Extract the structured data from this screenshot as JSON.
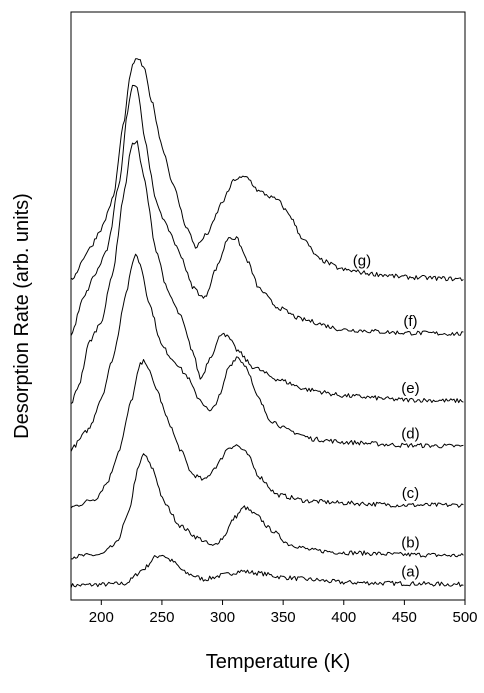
{
  "chart_data": {
    "type": "line",
    "xlabel": "Temperature (K)",
    "ylabel": "Desorption Rate (arb. units)",
    "xlim": [
      175,
      500
    ],
    "x_ticks": [
      200,
      250,
      300,
      350,
      400,
      450,
      500
    ],
    "y_ticks_shown": false,
    "grid": false,
    "legend": "none",
    "series": [
      {
        "label": "(a)",
        "label_x": 455,
        "baseline": 0.2,
        "points": [
          [
            175,
            0
          ],
          [
            200,
            0.05
          ],
          [
            220,
            0.1
          ],
          [
            235,
            0.8
          ],
          [
            245,
            1.4
          ],
          [
            250,
            1.5
          ],
          [
            258,
            1.2
          ],
          [
            270,
            0.6
          ],
          [
            285,
            0.3
          ],
          [
            300,
            0.5
          ],
          [
            315,
            0.7
          ],
          [
            330,
            0.6
          ],
          [
            350,
            0.4
          ],
          [
            370,
            0.3
          ],
          [
            400,
            0.15
          ],
          [
            450,
            0.1
          ],
          [
            500,
            0.05
          ]
        ]
      },
      {
        "label": "(b)",
        "label_x": 455,
        "baseline": 1.6,
        "points": [
          [
            175,
            0
          ],
          [
            200,
            0.1
          ],
          [
            212,
            0.6
          ],
          [
            222,
            2.0
          ],
          [
            230,
            4.2
          ],
          [
            235,
            5.0
          ],
          [
            242,
            4.3
          ],
          [
            252,
            2.6
          ],
          [
            265,
            1.5
          ],
          [
            280,
            0.9
          ],
          [
            292,
            0.5
          ],
          [
            300,
            0.9
          ],
          [
            310,
            1.9
          ],
          [
            318,
            2.4
          ],
          [
            328,
            2.0
          ],
          [
            340,
            1.3
          ],
          [
            355,
            0.6
          ],
          [
            375,
            0.3
          ],
          [
            400,
            0.2
          ],
          [
            450,
            0.1
          ],
          [
            500,
            0.05
          ]
        ]
      },
      {
        "label": "(c)",
        "label_x": 455,
        "baseline": 4.0,
        "points": [
          [
            175,
            0
          ],
          [
            195,
            0.4
          ],
          [
            205,
            1.2
          ],
          [
            215,
            2.8
          ],
          [
            225,
            5.2
          ],
          [
            232,
            6.9
          ],
          [
            236,
            7.1
          ],
          [
            245,
            5.8
          ],
          [
            255,
            4.2
          ],
          [
            265,
            2.8
          ],
          [
            275,
            1.6
          ],
          [
            285,
            1.3
          ],
          [
            295,
            2.0
          ],
          [
            305,
            2.9
          ],
          [
            312,
            3.0
          ],
          [
            320,
            2.6
          ],
          [
            330,
            1.5
          ],
          [
            345,
            0.6
          ],
          [
            370,
            0.3
          ],
          [
            400,
            0.2
          ],
          [
            450,
            0.1
          ],
          [
            500,
            0.1
          ]
        ]
      },
      {
        "label": "(d)",
        "label_x": 455,
        "baseline": 6.8,
        "points": [
          [
            175,
            0
          ],
          [
            190,
            1.0
          ],
          [
            200,
            2.5
          ],
          [
            210,
            4.5
          ],
          [
            220,
            7.5
          ],
          [
            228,
            9.5
          ],
          [
            232,
            9.0
          ],
          [
            240,
            7.0
          ],
          [
            250,
            5.0
          ],
          [
            260,
            4.3
          ],
          [
            270,
            3.6
          ],
          [
            280,
            2.5
          ],
          [
            290,
            1.8
          ],
          [
            298,
            2.6
          ],
          [
            305,
            4.0
          ],
          [
            312,
            4.5
          ],
          [
            320,
            4.0
          ],
          [
            328,
            2.6
          ],
          [
            340,
            1.4
          ],
          [
            355,
            0.9
          ],
          [
            375,
            0.5
          ],
          [
            400,
            0.35
          ],
          [
            450,
            0.2
          ],
          [
            500,
            0.15
          ]
        ]
      },
      {
        "label": "(e)",
        "label_x": 455,
        "baseline": 9.0,
        "points": [
          [
            175,
            0
          ],
          [
            182,
            1.0
          ],
          [
            190,
            3.0
          ],
          [
            200,
            4.0
          ],
          [
            210,
            6.5
          ],
          [
            218,
            10.0
          ],
          [
            225,
            12.5
          ],
          [
            229,
            12.8
          ],
          [
            235,
            11.0
          ],
          [
            245,
            7.5
          ],
          [
            255,
            5.4
          ],
          [
            265,
            4.3
          ],
          [
            275,
            2.6
          ],
          [
            282,
            1.2
          ],
          [
            290,
            2.3
          ],
          [
            300,
            3.5
          ],
          [
            305,
            3.2
          ],
          [
            312,
            2.6
          ],
          [
            325,
            1.8
          ],
          [
            345,
            1.2
          ],
          [
            370,
            0.7
          ],
          [
            400,
            0.4
          ],
          [
            450,
            0.2
          ],
          [
            500,
            0.15
          ]
        ]
      },
      {
        "label": "(f)",
        "label_x": 455,
        "baseline": 12.3,
        "points": [
          [
            175,
            0
          ],
          [
            185,
            1.8
          ],
          [
            195,
            3.0
          ],
          [
            205,
            4.2
          ],
          [
            215,
            7.5
          ],
          [
            222,
            11.0
          ],
          [
            226,
            12.3
          ],
          [
            230,
            12.0
          ],
          [
            236,
            9.5
          ],
          [
            245,
            6.5
          ],
          [
            255,
            5.2
          ],
          [
            265,
            4.0
          ],
          [
            275,
            2.4
          ],
          [
            285,
            1.8
          ],
          [
            295,
            3.3
          ],
          [
            305,
            4.8
          ],
          [
            312,
            4.7
          ],
          [
            320,
            3.7
          ],
          [
            330,
            2.3
          ],
          [
            345,
            1.4
          ],
          [
            365,
            0.8
          ],
          [
            400,
            0.3
          ],
          [
            450,
            0.15
          ],
          [
            500,
            0.1
          ]
        ]
      },
      {
        "label": "(g)",
        "label_x": 415,
        "baseline": 15.0,
        "points": [
          [
            175,
            0
          ],
          [
            190,
            1.5
          ],
          [
            200,
            2.5
          ],
          [
            210,
            4.0
          ],
          [
            218,
            7.5
          ],
          [
            225,
            10.3
          ],
          [
            230,
            10.8
          ],
          [
            235,
            10.3
          ],
          [
            242,
            8.6
          ],
          [
            250,
            6.5
          ],
          [
            260,
            4.5
          ],
          [
            270,
            2.6
          ],
          [
            278,
            1.6
          ],
          [
            288,
            2.3
          ],
          [
            300,
            3.8
          ],
          [
            310,
            4.9
          ],
          [
            320,
            5.0
          ],
          [
            330,
            4.3
          ],
          [
            345,
            3.9
          ],
          [
            355,
            3.2
          ],
          [
            365,
            2.1
          ],
          [
            380,
            1.0
          ],
          [
            400,
            0.5
          ],
          [
            425,
            0.3
          ],
          [
            450,
            0.15
          ],
          [
            500,
            0.05
          ]
        ]
      }
    ]
  }
}
